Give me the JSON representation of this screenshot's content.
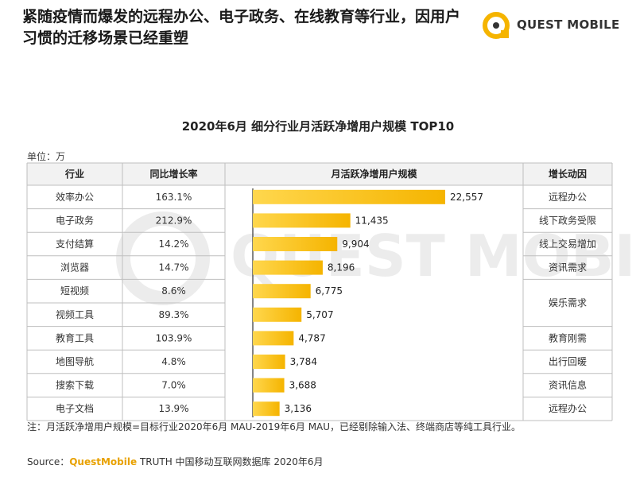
{
  "headline": "紧随疫情而爆发的远程办公、电子政务、在线教育等行业，因用户习惯的迁移场景已经重塑",
  "logo": {
    "text": "QUEST MOBILE"
  },
  "watermark": "QUEST MOBILE",
  "unit_label": "单位：万",
  "colors": {
    "bar": "#f5b400",
    "bar_light": "#ffd74d",
    "line": "#bfbfbf",
    "axis": "#333333"
  },
  "chart_data": {
    "type": "table",
    "title": "2020年6月 细分行业月活跃净增用户规模 TOP10",
    "headers": {
      "industry": "行业",
      "growth": "同比增长率",
      "value": "月活跃净增用户规模",
      "reason": "增长动因"
    },
    "categories": [
      "效率办公",
      "电子政务",
      "支付结算",
      "浏览器",
      "短视频",
      "视频工具",
      "教育工具",
      "地图导航",
      "搜索下载",
      "电子文档"
    ],
    "growth_rates": [
      "163.1%",
      "212.9%",
      "14.2%",
      "14.7%",
      "8.6%",
      "89.3%",
      "103.9%",
      "4.8%",
      "7.0%",
      "13.9%"
    ],
    "values": [
      22557,
      11435,
      9904,
      8196,
      6775,
      5707,
      4787,
      3784,
      3688,
      3136
    ],
    "value_labels": [
      "22,557",
      "11,435",
      "9,904",
      "8,196",
      "6,775",
      "5,707",
      "4,787",
      "3,784",
      "3,688",
      "3,136"
    ],
    "reasons": [
      {
        "text": "远程办公",
        "rows": [
          0
        ]
      },
      {
        "text": "线下政务受限",
        "rows": [
          1
        ]
      },
      {
        "text": "线上交易增加",
        "rows": [
          2
        ]
      },
      {
        "text": "资讯需求",
        "rows": [
          3
        ]
      },
      {
        "text": "娱乐需求",
        "rows": [
          4,
          5
        ]
      },
      {
        "text": "教育刚需",
        "rows": [
          6
        ]
      },
      {
        "text": "出行回暖",
        "rows": [
          7
        ]
      },
      {
        "text": "资讯信息",
        "rows": [
          8
        ]
      },
      {
        "text": "远程办公",
        "rows": [
          9
        ]
      }
    ],
    "xlim": [
      0,
      22557
    ]
  },
  "note": "注：月活跃净增用户规模=目标行业2020年6月 MAU-2019年6月 MAU，已经剔除输入法、终端商店等纯工具行业。",
  "source": {
    "prefix": "Source：",
    "brand": "QuestMobile",
    "rest": " TRUTH 中国移动互联网数据库 2020年6月"
  }
}
